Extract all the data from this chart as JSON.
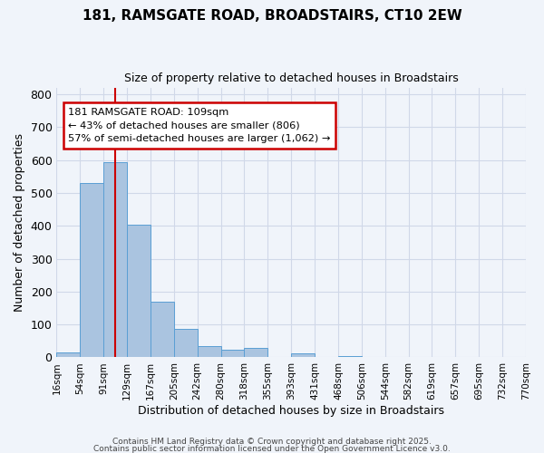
{
  "title": "181, RAMSGATE ROAD, BROADSTAIRS, CT10 2EW",
  "subtitle": "Size of property relative to detached houses in Broadstairs",
  "xlabel": "Distribution of detached houses by size in Broadstairs",
  "ylabel": "Number of detached properties",
  "tick_labels": [
    "16sqm",
    "54sqm",
    "91sqm",
    "129sqm",
    "167sqm",
    "205sqm",
    "242sqm",
    "280sqm",
    "318sqm",
    "355sqm",
    "393sqm",
    "431sqm",
    "468sqm",
    "506sqm",
    "544sqm",
    "582sqm",
    "619sqm",
    "657sqm",
    "695sqm",
    "732sqm",
    "770sqm"
  ],
  "bar_values": [
    15,
    530,
    595,
    405,
    170,
    88,
    35,
    22,
    28,
    0,
    12,
    0,
    3,
    0,
    0,
    0,
    0,
    0,
    0,
    0
  ],
  "bar_color": "#aac4e0",
  "bar_edgecolor": "#5a9fd4",
  "grid_color": "#d0d8e8",
  "background_color": "#f0f4fa",
  "vline_x": 2.5,
  "vline_color": "#cc0000",
  "annotation_title": "181 RAMSGATE ROAD: 109sqm",
  "annotation_line1": "← 43% of detached houses are smaller (806)",
  "annotation_line2": "57% of semi-detached houses are larger (1,062) →",
  "annotation_box_facecolor": "#ffffff",
  "annotation_box_edgecolor": "#cc0000",
  "ylim": [
    0,
    820
  ],
  "yticks": [
    0,
    100,
    200,
    300,
    400,
    500,
    600,
    700,
    800
  ],
  "footer1": "Contains HM Land Registry data © Crown copyright and database right 2025.",
  "footer2": "Contains public sector information licensed under the Open Government Licence v3.0."
}
